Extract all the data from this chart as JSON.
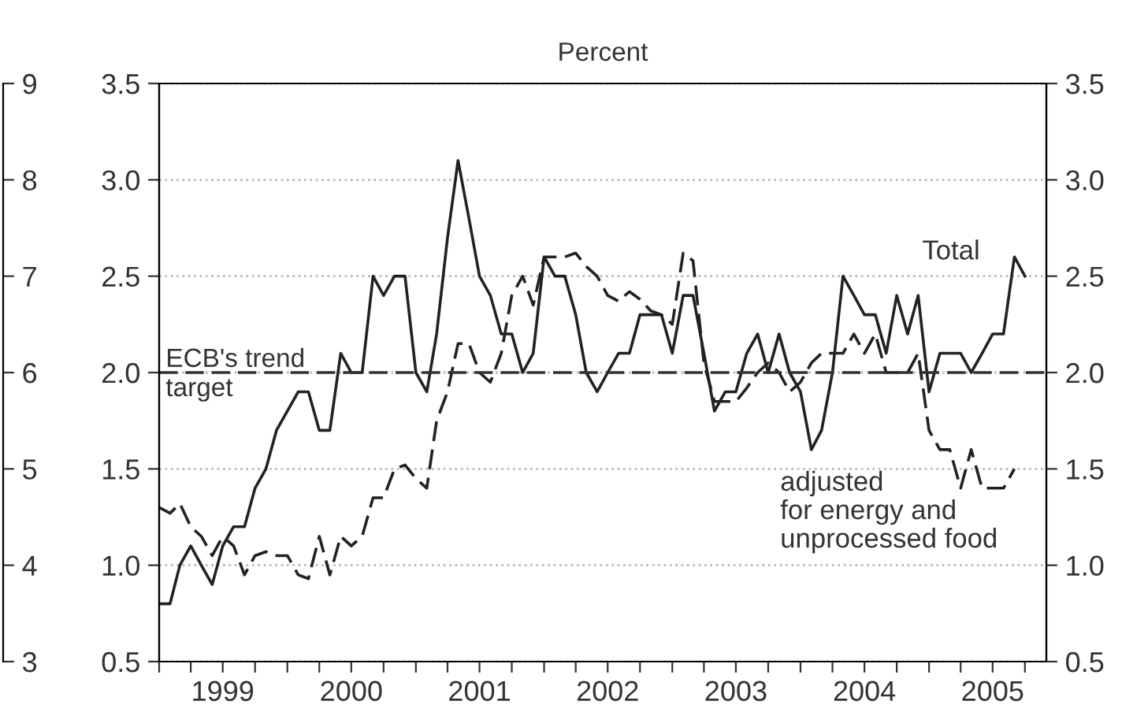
{
  "chart_data": {
    "type": "line",
    "title": "Percent",
    "x": [
      "1999-01",
      "1999-02",
      "1999-03",
      "1999-04",
      "1999-05",
      "1999-06",
      "1999-07",
      "1999-08",
      "1999-09",
      "1999-10",
      "1999-11",
      "1999-12",
      "2000-01",
      "2000-02",
      "2000-03",
      "2000-04",
      "2000-05",
      "2000-06",
      "2000-07",
      "2000-08",
      "2000-09",
      "2000-10",
      "2000-11",
      "2000-12",
      "2001-01",
      "2001-02",
      "2001-03",
      "2001-04",
      "2001-05",
      "2001-06",
      "2001-07",
      "2001-08",
      "2001-09",
      "2001-10",
      "2001-11",
      "2001-12",
      "2002-01",
      "2002-02",
      "2002-03",
      "2002-04",
      "2002-05",
      "2002-06",
      "2002-07",
      "2002-08",
      "2002-09",
      "2002-10",
      "2002-11",
      "2002-12",
      "2003-01",
      "2003-02",
      "2003-03",
      "2003-04",
      "2003-05",
      "2003-06",
      "2003-07",
      "2003-08",
      "2003-09",
      "2003-10",
      "2003-11",
      "2003-12",
      "2004-01",
      "2004-02",
      "2004-03",
      "2004-04",
      "2004-05",
      "2004-06",
      "2004-07",
      "2004-08",
      "2004-09",
      "2004-10",
      "2004-11",
      "2004-12",
      "2005-01",
      "2005-02",
      "2005-03",
      "2005-04",
      "2005-05",
      "2005-06",
      "2005-07",
      "2005-08",
      "2005-09",
      "2005-10"
    ],
    "series": [
      {
        "name": "Total",
        "color": "#222222",
        "line_style": "solid",
        "values": [
          0.8,
          0.8,
          1.0,
          1.1,
          1.0,
          0.9,
          1.1,
          1.2,
          1.2,
          1.4,
          1.5,
          1.7,
          1.8,
          1.9,
          1.9,
          1.7,
          1.7,
          2.1,
          2.0,
          2.0,
          2.5,
          2.4,
          2.5,
          2.5,
          2.0,
          1.9,
          2.2,
          2.7,
          3.1,
          2.8,
          2.5,
          2.4,
          2.2,
          2.2,
          2.0,
          2.1,
          2.6,
          2.5,
          2.5,
          2.3,
          2.0,
          1.9,
          2.0,
          2.1,
          2.1,
          2.3,
          2.3,
          2.3,
          2.1,
          2.4,
          2.4,
          2.1,
          1.8,
          1.9,
          1.9,
          2.1,
          2.2,
          2.0,
          2.2,
          2.0,
          1.9,
          1.6,
          1.7,
          2.0,
          2.5,
          2.4,
          2.3,
          2.3,
          2.1,
          2.4,
          2.2,
          2.4,
          1.9,
          2.1,
          2.1,
          2.1,
          2.0,
          2.1,
          2.2,
          2.2,
          2.6,
          2.5
        ]
      },
      {
        "name": "adjusted\nfor energy and\nunprocessed food",
        "color": "#222222",
        "line_style": "dashed",
        "values": [
          1.3,
          1.27,
          1.32,
          1.2,
          1.15,
          1.05,
          1.15,
          1.1,
          0.95,
          1.05,
          1.07,
          1.05,
          1.05,
          0.95,
          0.93,
          1.15,
          0.95,
          1.15,
          1.1,
          1.15,
          1.35,
          1.35,
          1.5,
          1.52,
          1.45,
          1.4,
          1.75,
          1.9,
          2.15,
          2.15,
          2.0,
          1.95,
          2.1,
          2.4,
          2.5,
          2.35,
          2.6,
          2.6,
          2.6,
          2.62,
          2.55,
          2.5,
          2.4,
          2.37,
          2.42,
          2.38,
          2.32,
          2.3,
          2.25,
          2.62,
          2.58,
          2.05,
          1.85,
          1.85,
          1.85,
          1.92,
          2.0,
          2.05,
          2.0,
          1.9,
          1.95,
          2.05,
          2.1,
          2.1,
          2.1,
          2.2,
          2.1,
          2.2,
          2.0,
          2.0,
          2.0,
          2.1,
          1.7,
          1.6,
          1.6,
          1.4,
          1.6,
          1.4,
          1.4,
          1.4,
          1.5,
          null
        ]
      }
    ],
    "xlim": [
      "1999-01",
      "2005-12"
    ],
    "xticks": [
      {
        "value": "1999-01",
        "label": null
      },
      {
        "value": "1999-04",
        "label": null
      },
      {
        "value": "1999-07",
        "label": "1999"
      },
      {
        "value": "1999-10",
        "label": null
      },
      {
        "value": "2000-01",
        "label": null
      },
      {
        "value": "2000-04",
        "label": null
      },
      {
        "value": "2000-07",
        "label": "2000"
      },
      {
        "value": "2000-10",
        "label": null
      },
      {
        "value": "2001-01",
        "label": null
      },
      {
        "value": "2001-04",
        "label": null
      },
      {
        "value": "2001-07",
        "label": "2001"
      },
      {
        "value": "2001-10",
        "label": null
      },
      {
        "value": "2002-01",
        "label": null
      },
      {
        "value": "2002-04",
        "label": null
      },
      {
        "value": "2002-07",
        "label": "2002"
      },
      {
        "value": "2002-10",
        "label": null
      },
      {
        "value": "2003-01",
        "label": null
      },
      {
        "value": "2003-04",
        "label": null
      },
      {
        "value": "2003-07",
        "label": "2003"
      },
      {
        "value": "2003-10",
        "label": null
      },
      {
        "value": "2004-01",
        "label": null
      },
      {
        "value": "2004-04",
        "label": null
      },
      {
        "value": "2004-07",
        "label": "2004"
      },
      {
        "value": "2004-10",
        "label": null
      },
      {
        "value": "2005-01",
        "label": null
      },
      {
        "value": "2005-04",
        "label": null
      },
      {
        "value": "2005-07",
        "label": "2005"
      },
      {
        "value": "2005-10",
        "label": null
      }
    ],
    "ylim": [
      0.5,
      3.5
    ],
    "yticks": [
      {
        "value": 0.5,
        "label": "0.5"
      },
      {
        "value": 1.0,
        "label": "1.0"
      },
      {
        "value": 1.5,
        "label": "1.5"
      },
      {
        "value": 2.0,
        "label": "2.0"
      },
      {
        "value": 2.5,
        "label": "2.5"
      },
      {
        "value": 3.0,
        "label": "3.0"
      },
      {
        "value": 3.5,
        "label": "3.5"
      }
    ],
    "y2lim": [
      0.5,
      3.5
    ],
    "y2ticks": [
      {
        "value": 0.5,
        "label": "0.5"
      },
      {
        "value": 1.0,
        "label": "1.0"
      },
      {
        "value": 1.5,
        "label": "1.5"
      },
      {
        "value": 2.0,
        "label": "2.0"
      },
      {
        "value": 2.5,
        "label": "2.5"
      },
      {
        "value": 3.0,
        "label": "3.0"
      },
      {
        "value": 3.5,
        "label": "3.5"
      }
    ],
    "y3lim": [
      3,
      9
    ],
    "y3ticks": [
      3,
      4,
      5,
      6,
      7,
      8,
      9
    ],
    "ref_lines": [
      {
        "axis": "y",
        "value": 2.0,
        "label": "ECB's trend\ntarget",
        "color": "#333333",
        "line_style": "dashed"
      }
    ],
    "grid": "y",
    "legend": false
  }
}
